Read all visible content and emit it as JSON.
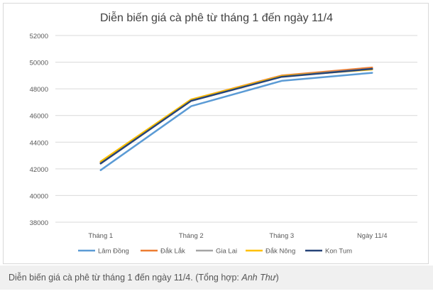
{
  "chart_data": {
    "type": "line",
    "title": "Diễn biến giá cà phê từ tháng 1 đến ngày 11/4",
    "xlabel": "",
    "ylabel": "",
    "categories": [
      "Tháng 1",
      "Tháng 2",
      "Tháng 3",
      "Ngày 11/4"
    ],
    "ylim": [
      38000,
      52000
    ],
    "yticks": [
      "38000",
      "40000",
      "42000",
      "44000",
      "46000",
      "48000",
      "50000",
      "52000"
    ],
    "grid": true,
    "legend_position": "bottom",
    "series": [
      {
        "name": "Lâm Đồng",
        "color": "#5b9bd5",
        "values": [
          41900,
          46700,
          48600,
          49200
        ]
      },
      {
        "name": "Đắk Lắk",
        "color": "#ed7d31",
        "values": [
          42500,
          47200,
          49000,
          49600
        ]
      },
      {
        "name": "Gia Lai",
        "color": "#a5a5a5",
        "values": [
          42450,
          47150,
          48950,
          49500
        ]
      },
      {
        "name": "Đắk Nông",
        "color": "#ffc000",
        "values": [
          42550,
          47200,
          48950,
          49450
        ]
      },
      {
        "name": "Kon Tum",
        "color": "#264478",
        "values": [
          42400,
          47100,
          48900,
          49500
        ]
      }
    ]
  },
  "caption": {
    "text": "Diễn biến giá cà phê từ tháng 1 đến ngày 11/4. (Tổng hợp: ",
    "author": "Anh Thư",
    "close": ")"
  }
}
